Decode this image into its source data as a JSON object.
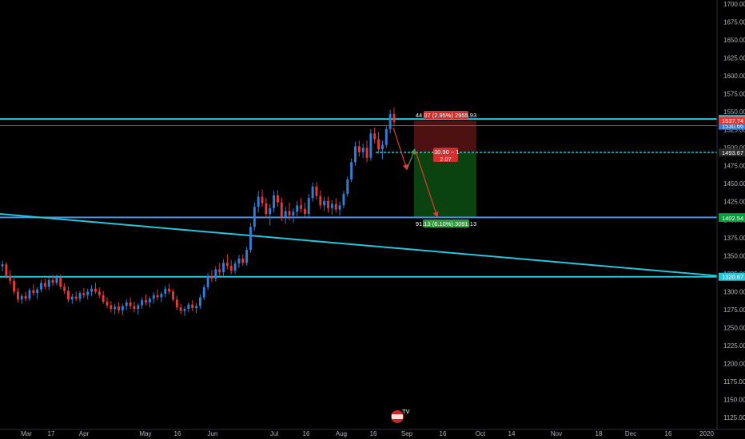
{
  "chart_data": {
    "type": "candlestick",
    "title": "",
    "x_labels": [
      "Mar",
      "17",
      "Apr",
      "May",
      "16",
      "Jun",
      "Jul",
      "16",
      "Aug",
      "16",
      "Sep",
      "16",
      "Oct",
      "14",
      "Nov",
      "18",
      "Dec",
      "16",
      "2020"
    ],
    "y_ticks": [
      1125,
      1150,
      1175,
      1200,
      1225,
      1250,
      1275,
      1300,
      1325,
      1350,
      1375,
      1400,
      1425,
      1450,
      1475,
      1500,
      1525,
      1550,
      1575,
      1600,
      1625,
      1650,
      1675,
      1700
    ],
    "ylim": [
      1115,
      1703
    ],
    "y_tick_labels": [
      "1125.00",
      "1150.00",
      "1175.00",
      "1200.00",
      "1225.00",
      "1250.00",
      "1275.00",
      "1300.00",
      "1325.00",
      "1350.00",
      "1375.00",
      "1400.00",
      "1425.00",
      "1450.00",
      "1475.00",
      "1500.00",
      "1525.00",
      "1550.00",
      "1575.00",
      "1600.00",
      "1625.00",
      "1650.00",
      "1675.00",
      "1700.00"
    ],
    "colors": {
      "up": "#2f7ed8",
      "down": "#e53935",
      "line_cyan": "#26c6da",
      "line_blue": "#4f8fe0",
      "stop": "#5a1414",
      "target": "#0c4a12"
    },
    "horizontal_levels": [
      {
        "label": "1539.96",
        "value": 1539.96,
        "color": "#26c6da"
      },
      {
        "label": "1530.66",
        "value": 1530.66,
        "color": "#2f7ed8"
      },
      {
        "label": "1403.27",
        "value": 1403.27,
        "color": "#4f8fe0"
      },
      {
        "label": "1320.67",
        "value": 1320.67,
        "color": "#26c6da"
      }
    ],
    "price_tags": [
      {
        "label": "1537.74",
        "value": 1537.74,
        "color": "#e53935"
      },
      {
        "label": "1493.67",
        "value": 1493.67,
        "color": "#2b2b2b"
      },
      {
        "label": "1402.54",
        "value": 1402.54,
        "color": "#0a9e3b"
      }
    ],
    "entry_level": {
      "label": "1493.67",
      "value": 1493.67
    },
    "trendline": {
      "start_value": 1408,
      "end_value": 1322
    },
    "position": {
      "stop_label": "44.07 (2.95%) 2955.93",
      "target_label": "91.13 (6.10%) 3091.13",
      "ratio_label_line1": "-30.90 ~ 1",
      "ratio_label_line2": "2.07",
      "entry": 1493.67,
      "stop": 1537.74,
      "target": 1402.54
    },
    "candles": [
      [
        1335,
        1343,
        1328,
        1338
      ],
      [
        1338,
        1341,
        1318,
        1322
      ],
      [
        1322,
        1330,
        1310,
        1315
      ],
      [
        1315,
        1322,
        1296,
        1300
      ],
      [
        1300,
        1305,
        1285,
        1289
      ],
      [
        1289,
        1297,
        1283,
        1294
      ],
      [
        1294,
        1300,
        1287,
        1290
      ],
      [
        1290,
        1305,
        1287,
        1302
      ],
      [
        1302,
        1310,
        1294,
        1298
      ],
      [
        1298,
        1306,
        1290,
        1303
      ],
      [
        1303,
        1316,
        1299,
        1312
      ],
      [
        1312,
        1318,
        1303,
        1307
      ],
      [
        1307,
        1320,
        1302,
        1316
      ],
      [
        1316,
        1323,
        1308,
        1312
      ],
      [
        1312,
        1324,
        1309,
        1320
      ],
      [
        1320,
        1324,
        1303,
        1307
      ],
      [
        1307,
        1312,
        1297,
        1301
      ],
      [
        1301,
        1307,
        1285,
        1289
      ],
      [
        1289,
        1297,
        1283,
        1293
      ],
      [
        1293,
        1300,
        1287,
        1290
      ],
      [
        1290,
        1301,
        1286,
        1298
      ],
      [
        1298,
        1305,
        1291,
        1295
      ],
      [
        1295,
        1304,
        1289,
        1300
      ],
      [
        1300,
        1309,
        1294,
        1304
      ],
      [
        1304,
        1312,
        1297,
        1300
      ],
      [
        1300,
        1306,
        1291,
        1295
      ],
      [
        1295,
        1301,
        1283,
        1286
      ],
      [
        1286,
        1292,
        1277,
        1281
      ],
      [
        1281,
        1287,
        1271,
        1276
      ],
      [
        1276,
        1283,
        1268,
        1279
      ],
      [
        1279,
        1285,
        1270,
        1274
      ],
      [
        1274,
        1283,
        1267,
        1280
      ],
      [
        1280,
        1289,
        1274,
        1285
      ],
      [
        1285,
        1292,
        1276,
        1280
      ],
      [
        1280,
        1286,
        1271,
        1276
      ],
      [
        1276,
        1284,
        1268,
        1281
      ],
      [
        1281,
        1292,
        1276,
        1288
      ],
      [
        1288,
        1296,
        1281,
        1285
      ],
      [
        1285,
        1293,
        1278,
        1290
      ],
      [
        1290,
        1299,
        1284,
        1295
      ],
      [
        1295,
        1303,
        1288,
        1292
      ],
      [
        1292,
        1300,
        1285,
        1297
      ],
      [
        1297,
        1308,
        1292,
        1304
      ],
      [
        1304,
        1311,
        1296,
        1300
      ],
      [
        1300,
        1304,
        1286,
        1289
      ],
      [
        1289,
        1294,
        1274,
        1278
      ],
      [
        1278,
        1283,
        1269,
        1273
      ],
      [
        1273,
        1279,
        1266,
        1276
      ],
      [
        1276,
        1285,
        1271,
        1282
      ],
      [
        1282,
        1288,
        1273,
        1277
      ],
      [
        1277,
        1284,
        1270,
        1280
      ],
      [
        1280,
        1296,
        1276,
        1292
      ],
      [
        1292,
        1310,
        1288,
        1306
      ],
      [
        1306,
        1326,
        1302,
        1322
      ],
      [
        1322,
        1330,
        1313,
        1318
      ],
      [
        1318,
        1335,
        1314,
        1331
      ],
      [
        1331,
        1340,
        1322,
        1327
      ],
      [
        1327,
        1345,
        1322,
        1340
      ],
      [
        1340,
        1352,
        1331,
        1336
      ],
      [
        1336,
        1344,
        1324,
        1329
      ],
      [
        1329,
        1343,
        1325,
        1339
      ],
      [
        1339,
        1351,
        1333,
        1346
      ],
      [
        1346,
        1352,
        1336,
        1340
      ],
      [
        1340,
        1362,
        1336,
        1358
      ],
      [
        1358,
        1395,
        1354,
        1390
      ],
      [
        1390,
        1424,
        1385,
        1418
      ],
      [
        1418,
        1440,
        1410,
        1432
      ],
      [
        1432,
        1442,
        1418,
        1423
      ],
      [
        1423,
        1430,
        1402,
        1408
      ],
      [
        1408,
        1422,
        1392,
        1416
      ],
      [
        1416,
        1440,
        1410,
        1434
      ],
      [
        1434,
        1441,
        1418,
        1424
      ],
      [
        1424,
        1431,
        1398,
        1404
      ],
      [
        1404,
        1418,
        1394,
        1412
      ],
      [
        1412,
        1424,
        1399,
        1406
      ],
      [
        1406,
        1416,
        1396,
        1411
      ],
      [
        1411,
        1426,
        1405,
        1420
      ],
      [
        1420,
        1430,
        1410,
        1415
      ],
      [
        1415,
        1424,
        1403,
        1408
      ],
      [
        1408,
        1436,
        1404,
        1430
      ],
      [
        1430,
        1452,
        1425,
        1446
      ],
      [
        1446,
        1452,
        1428,
        1433
      ],
      [
        1433,
        1441,
        1415,
        1420
      ],
      [
        1420,
        1432,
        1412,
        1426
      ],
      [
        1426,
        1432,
        1410,
        1416
      ],
      [
        1416,
        1427,
        1407,
        1422
      ],
      [
        1422,
        1430,
        1410,
        1414
      ],
      [
        1414,
        1425,
        1406,
        1420
      ],
      [
        1420,
        1440,
        1416,
        1436
      ],
      [
        1436,
        1460,
        1432,
        1456
      ],
      [
        1456,
        1485,
        1452,
        1480
      ],
      [
        1480,
        1508,
        1475,
        1502
      ],
      [
        1502,
        1510,
        1488,
        1494
      ],
      [
        1494,
        1506,
        1486,
        1500
      ],
      [
        1500,
        1510,
        1480,
        1486
      ],
      [
        1486,
        1526,
        1482,
        1520
      ],
      [
        1520,
        1528,
        1506,
        1512
      ],
      [
        1512,
        1522,
        1492,
        1498
      ],
      [
        1498,
        1510,
        1484,
        1504
      ],
      [
        1504,
        1530,
        1500,
        1526
      ],
      [
        1526,
        1553,
        1520,
        1547
      ],
      [
        1547,
        1556,
        1530,
        1536
      ]
    ]
  },
  "watermark": {
    "label": "TV"
  }
}
